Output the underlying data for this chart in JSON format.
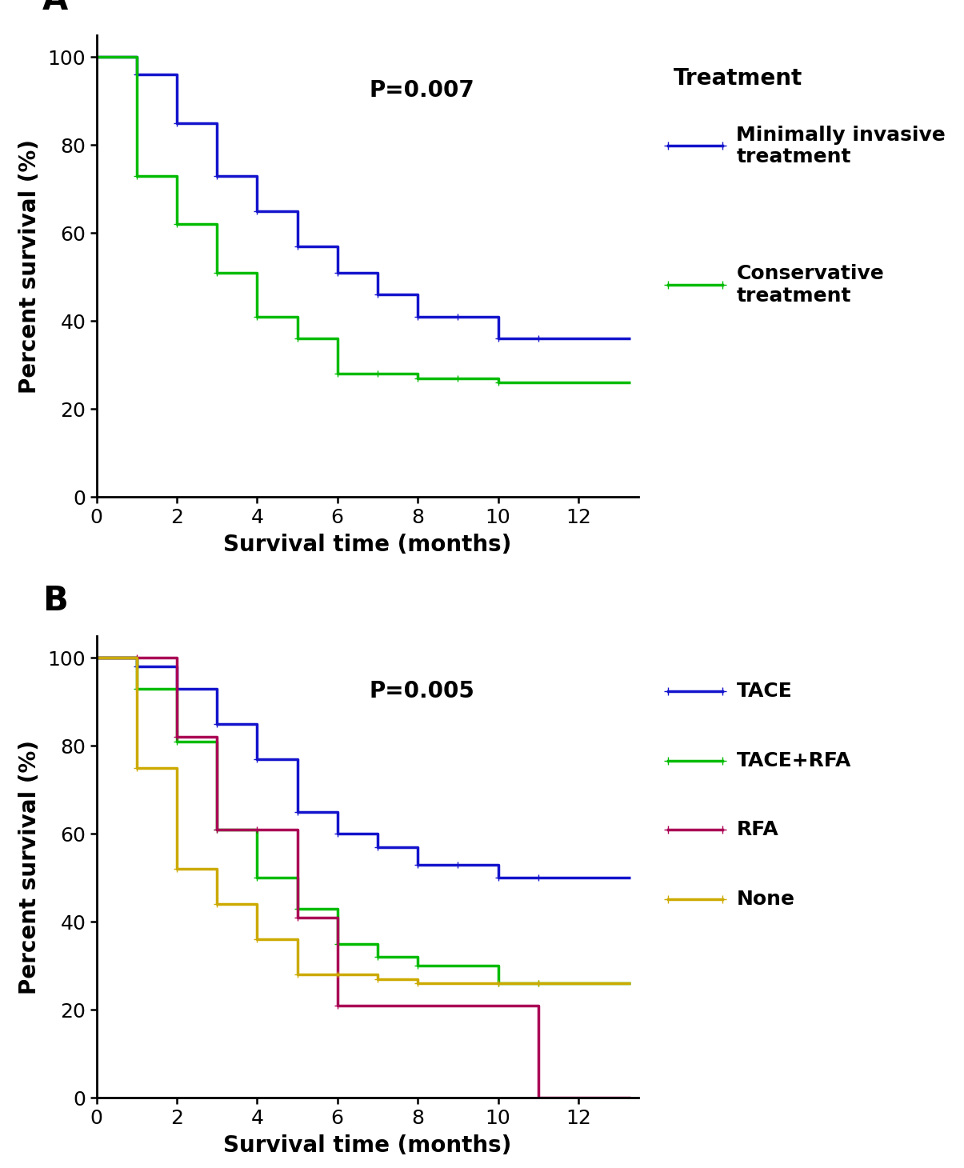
{
  "panel_A": {
    "title_label": "A",
    "pvalue": "P=0.007",
    "xlabel": "Survival time (months)",
    "ylabel": "Percent survival (%)",
    "legend_title": "Treatment",
    "xlim": [
      0,
      13.5
    ],
    "ylim": [
      0,
      105
    ],
    "xticks": [
      0,
      2,
      4,
      6,
      8,
      10,
      12
    ],
    "yticks": [
      0,
      20,
      40,
      60,
      80,
      100
    ],
    "curves": [
      {
        "label": "Minimally invasive\ntreatment",
        "color": "#1414CC",
        "x": [
          0,
          1,
          1,
          2,
          2,
          3,
          3,
          4,
          4,
          5,
          5,
          6,
          6,
          7,
          7,
          8,
          8,
          9,
          9,
          10,
          10,
          11,
          11,
          13.3
        ],
        "y": [
          100,
          100,
          96,
          96,
          85,
          85,
          73,
          73,
          65,
          65,
          57,
          57,
          51,
          51,
          46,
          46,
          41,
          41,
          41,
          41,
          36,
          36,
          36,
          36
        ]
      },
      {
        "label": "Conservative\ntreatment",
        "color": "#00BB00",
        "x": [
          0,
          1,
          1,
          2,
          2,
          3,
          3,
          4,
          4,
          5,
          5,
          6,
          6,
          7,
          7,
          8,
          8,
          9,
          9,
          10,
          10,
          13.3
        ],
        "y": [
          100,
          100,
          73,
          73,
          62,
          62,
          51,
          51,
          41,
          41,
          36,
          36,
          28,
          28,
          28,
          28,
          27,
          27,
          27,
          27,
          26,
          26
        ]
      }
    ]
  },
  "panel_B": {
    "title_label": "B",
    "pvalue": "P=0.005",
    "xlabel": "Survival time (months)",
    "ylabel": "Percent survival (%)",
    "xlim": [
      0,
      13.5
    ],
    "ylim": [
      0,
      105
    ],
    "xticks": [
      0,
      2,
      4,
      6,
      8,
      10,
      12
    ],
    "yticks": [
      0,
      20,
      40,
      60,
      80,
      100
    ],
    "curves": [
      {
        "label": "TACE",
        "color": "#1414CC",
        "x": [
          0,
          1,
          1,
          2,
          2,
          3,
          3,
          4,
          4,
          5,
          5,
          6,
          6,
          7,
          7,
          8,
          8,
          9,
          9,
          10,
          10,
          11,
          11,
          13.3
        ],
        "y": [
          100,
          100,
          98,
          98,
          93,
          93,
          85,
          85,
          77,
          77,
          65,
          65,
          60,
          60,
          57,
          57,
          53,
          53,
          53,
          53,
          50,
          50,
          50,
          50
        ]
      },
      {
        "label": "TACE+RFA",
        "color": "#00BB00",
        "x": [
          0,
          1,
          1,
          2,
          2,
          3,
          3,
          4,
          4,
          5,
          5,
          6,
          6,
          7,
          7,
          8,
          8,
          10,
          10,
          11,
          11,
          13.3
        ],
        "y": [
          100,
          100,
          93,
          93,
          81,
          81,
          61,
          61,
          50,
          50,
          43,
          43,
          35,
          35,
          32,
          32,
          30,
          30,
          26,
          26,
          26,
          26
        ]
      },
      {
        "label": "RFA",
        "color": "#AA0055",
        "x": [
          0,
          1,
          1,
          2,
          2,
          3,
          3,
          4,
          4,
          5,
          5,
          6,
          6,
          11,
          11,
          13.3
        ],
        "y": [
          100,
          100,
          100,
          100,
          82,
          82,
          61,
          61,
          61,
          61,
          41,
          41,
          21,
          21,
          0,
          0
        ]
      },
      {
        "label": "None",
        "color": "#CCAA00",
        "x": [
          0,
          1,
          1,
          2,
          2,
          3,
          3,
          4,
          4,
          5,
          5,
          6,
          6,
          7,
          7,
          8,
          8,
          10,
          10,
          11,
          11,
          13.3
        ],
        "y": [
          100,
          100,
          75,
          75,
          52,
          52,
          44,
          44,
          36,
          36,
          28,
          28,
          28,
          28,
          27,
          27,
          26,
          26,
          26,
          26,
          26,
          26
        ]
      }
    ]
  },
  "background_color": "#ffffff",
  "tick_fontsize": 18,
  "axis_label_fontsize": 20,
  "legend_title_fontsize": 20,
  "legend_fontsize": 18,
  "pvalue_fontsize": 20,
  "line_width": 2.5,
  "panel_label_fontsize": 30,
  "marker": "+"
}
